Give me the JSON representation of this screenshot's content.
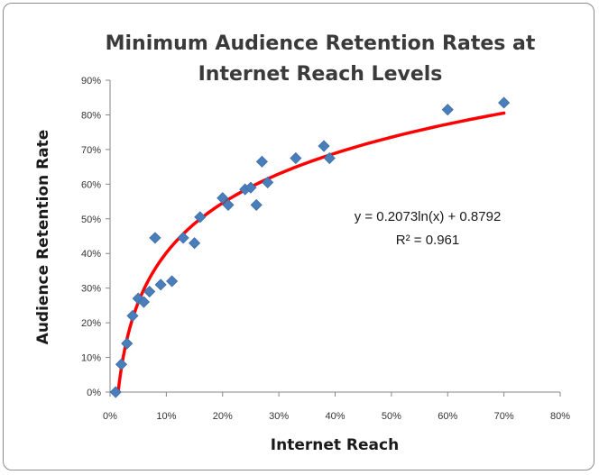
{
  "chart_data": {
    "type": "scatter",
    "title_lines": [
      "Minimum Audience Retention Rates at",
      "Internet Reach Levels"
    ],
    "xlabel": "Internet Reach",
    "ylabel": "Audience Retention Rate",
    "xlim": [
      0,
      0.8
    ],
    "ylim": [
      0,
      0.9
    ],
    "x_ticks": [
      {
        "value": 0,
        "label": "0%"
      },
      {
        "value": 0.1,
        "label": "10%"
      },
      {
        "value": 0.2,
        "label": "20%"
      },
      {
        "value": 0.3,
        "label": "30%"
      },
      {
        "value": 0.4,
        "label": "40%"
      },
      {
        "value": 0.5,
        "label": "50%"
      },
      {
        "value": 0.6,
        "label": "60%"
      },
      {
        "value": 0.7,
        "label": "70%"
      },
      {
        "value": 0.8,
        "label": "80%"
      }
    ],
    "y_ticks": [
      {
        "value": 0,
        "label": "0%"
      },
      {
        "value": 0.1,
        "label": "10%"
      },
      {
        "value": 0.2,
        "label": "20%"
      },
      {
        "value": 0.3,
        "label": "30%"
      },
      {
        "value": 0.4,
        "label": "40%"
      },
      {
        "value": 0.5,
        "label": "50%"
      },
      {
        "value": 0.6,
        "label": "60%"
      },
      {
        "value": 0.7,
        "label": "70%"
      },
      {
        "value": 0.8,
        "label": "80%"
      },
      {
        "value": 0.9,
        "label": "90%"
      }
    ],
    "grid": false,
    "marker_color": "#4a7ebb",
    "trend_color": "#ff0000",
    "points": [
      {
        "x": 0.01,
        "y": 0.0
      },
      {
        "x": 0.02,
        "y": 0.08
      },
      {
        "x": 0.03,
        "y": 0.14
      },
      {
        "x": 0.04,
        "y": 0.22
      },
      {
        "x": 0.05,
        "y": 0.27
      },
      {
        "x": 0.06,
        "y": 0.26
      },
      {
        "x": 0.07,
        "y": 0.29
      },
      {
        "x": 0.08,
        "y": 0.445
      },
      {
        "x": 0.09,
        "y": 0.31
      },
      {
        "x": 0.11,
        "y": 0.32
      },
      {
        "x": 0.13,
        "y": 0.445
      },
      {
        "x": 0.15,
        "y": 0.43
      },
      {
        "x": 0.16,
        "y": 0.505
      },
      {
        "x": 0.2,
        "y": 0.56
      },
      {
        "x": 0.21,
        "y": 0.54
      },
      {
        "x": 0.24,
        "y": 0.585
      },
      {
        "x": 0.25,
        "y": 0.59
      },
      {
        "x": 0.26,
        "y": 0.54
      },
      {
        "x": 0.27,
        "y": 0.665
      },
      {
        "x": 0.28,
        "y": 0.605
      },
      {
        "x": 0.33,
        "y": 0.675
      },
      {
        "x": 0.38,
        "y": 0.71
      },
      {
        "x": 0.39,
        "y": 0.675
      },
      {
        "x": 0.6,
        "y": 0.815
      },
      {
        "x": 0.7,
        "y": 0.835
      }
    ],
    "trendline": {
      "type": "logarithmic",
      "a": 0.2073,
      "b": 0.8792,
      "x_range": [
        0.012,
        0.7
      ]
    },
    "annotations": [
      "y = 0.2073ln(x) + 0.8792",
      "R² = 0.961"
    ]
  }
}
